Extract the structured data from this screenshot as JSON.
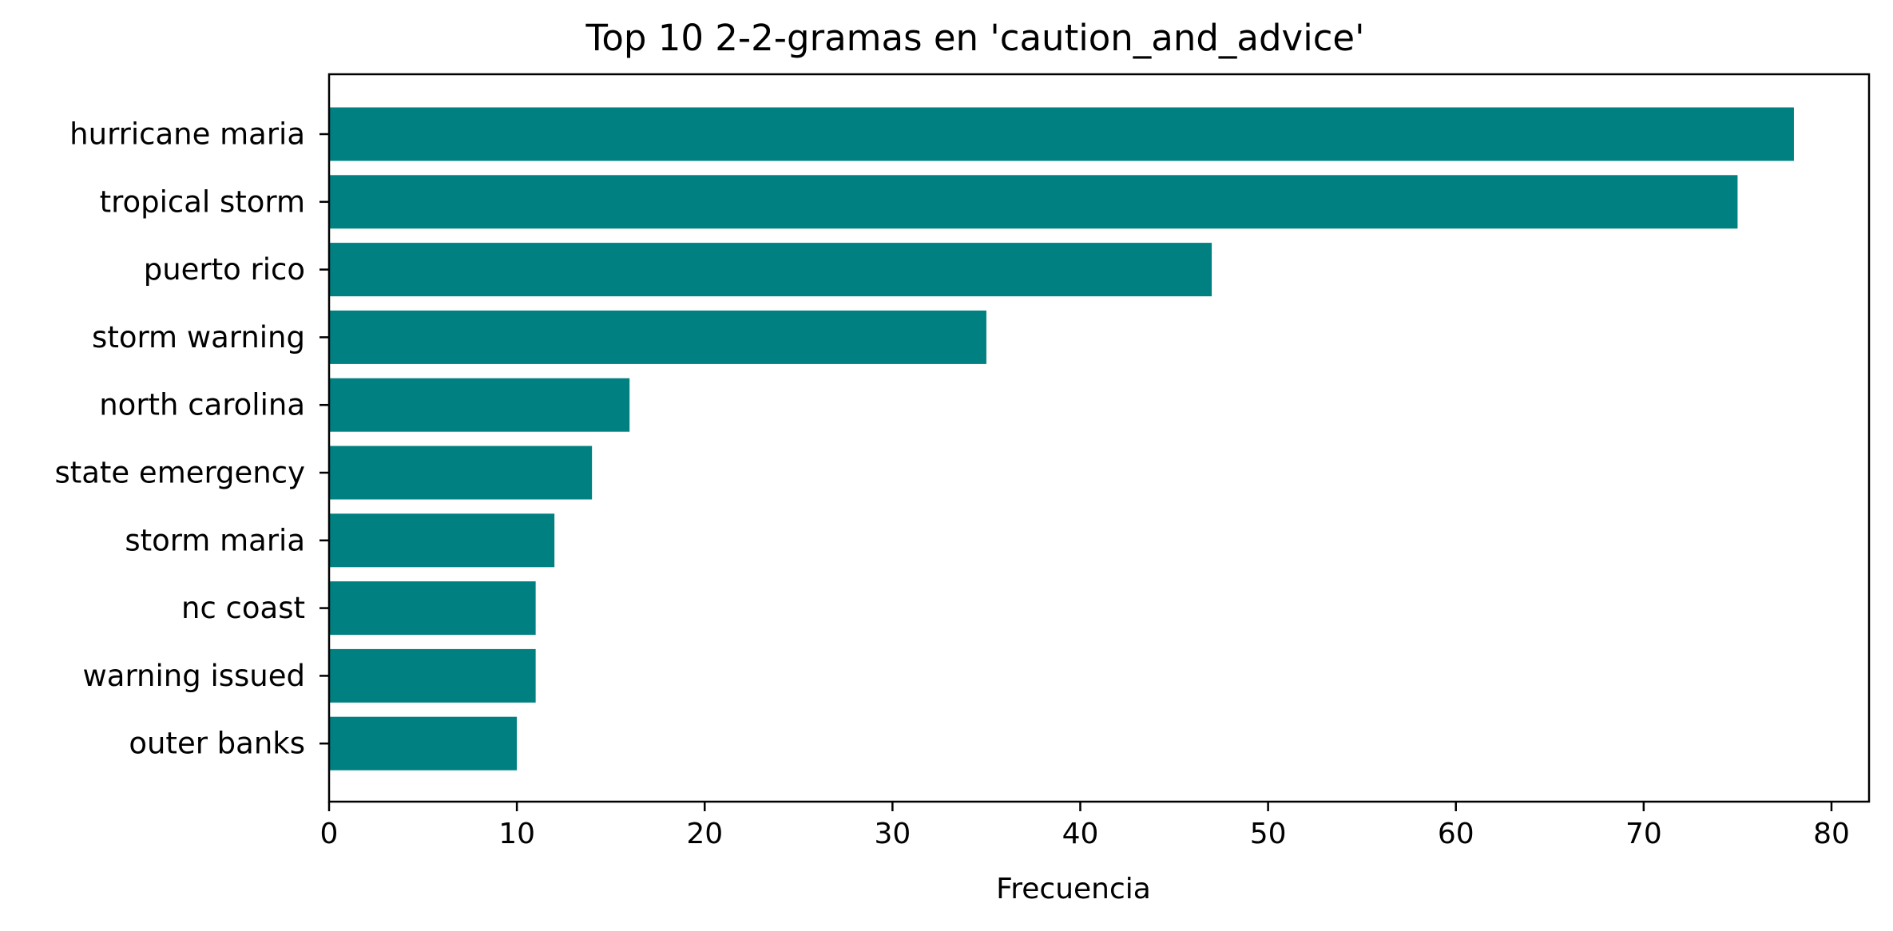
{
  "chart_data": {
    "type": "bar",
    "orientation": "horizontal",
    "title": "Top 10 2-2-gramas en 'caution_and_advice'",
    "xlabel": "Frecuencia",
    "ylabel": "",
    "categories": [
      "hurricane maria",
      "tropical storm",
      "puerto rico",
      "storm warning",
      "north carolina",
      "state emergency",
      "storm maria",
      "nc coast",
      "warning issued",
      "outer banks"
    ],
    "values": [
      78,
      75,
      47,
      35,
      16,
      14,
      12,
      11,
      11,
      10
    ],
    "xlim": [
      0,
      82
    ],
    "xticks": [
      0,
      10,
      20,
      30,
      40,
      50,
      60,
      70,
      80
    ],
    "grid": false,
    "legend": "none",
    "bar_color": "#008080"
  }
}
